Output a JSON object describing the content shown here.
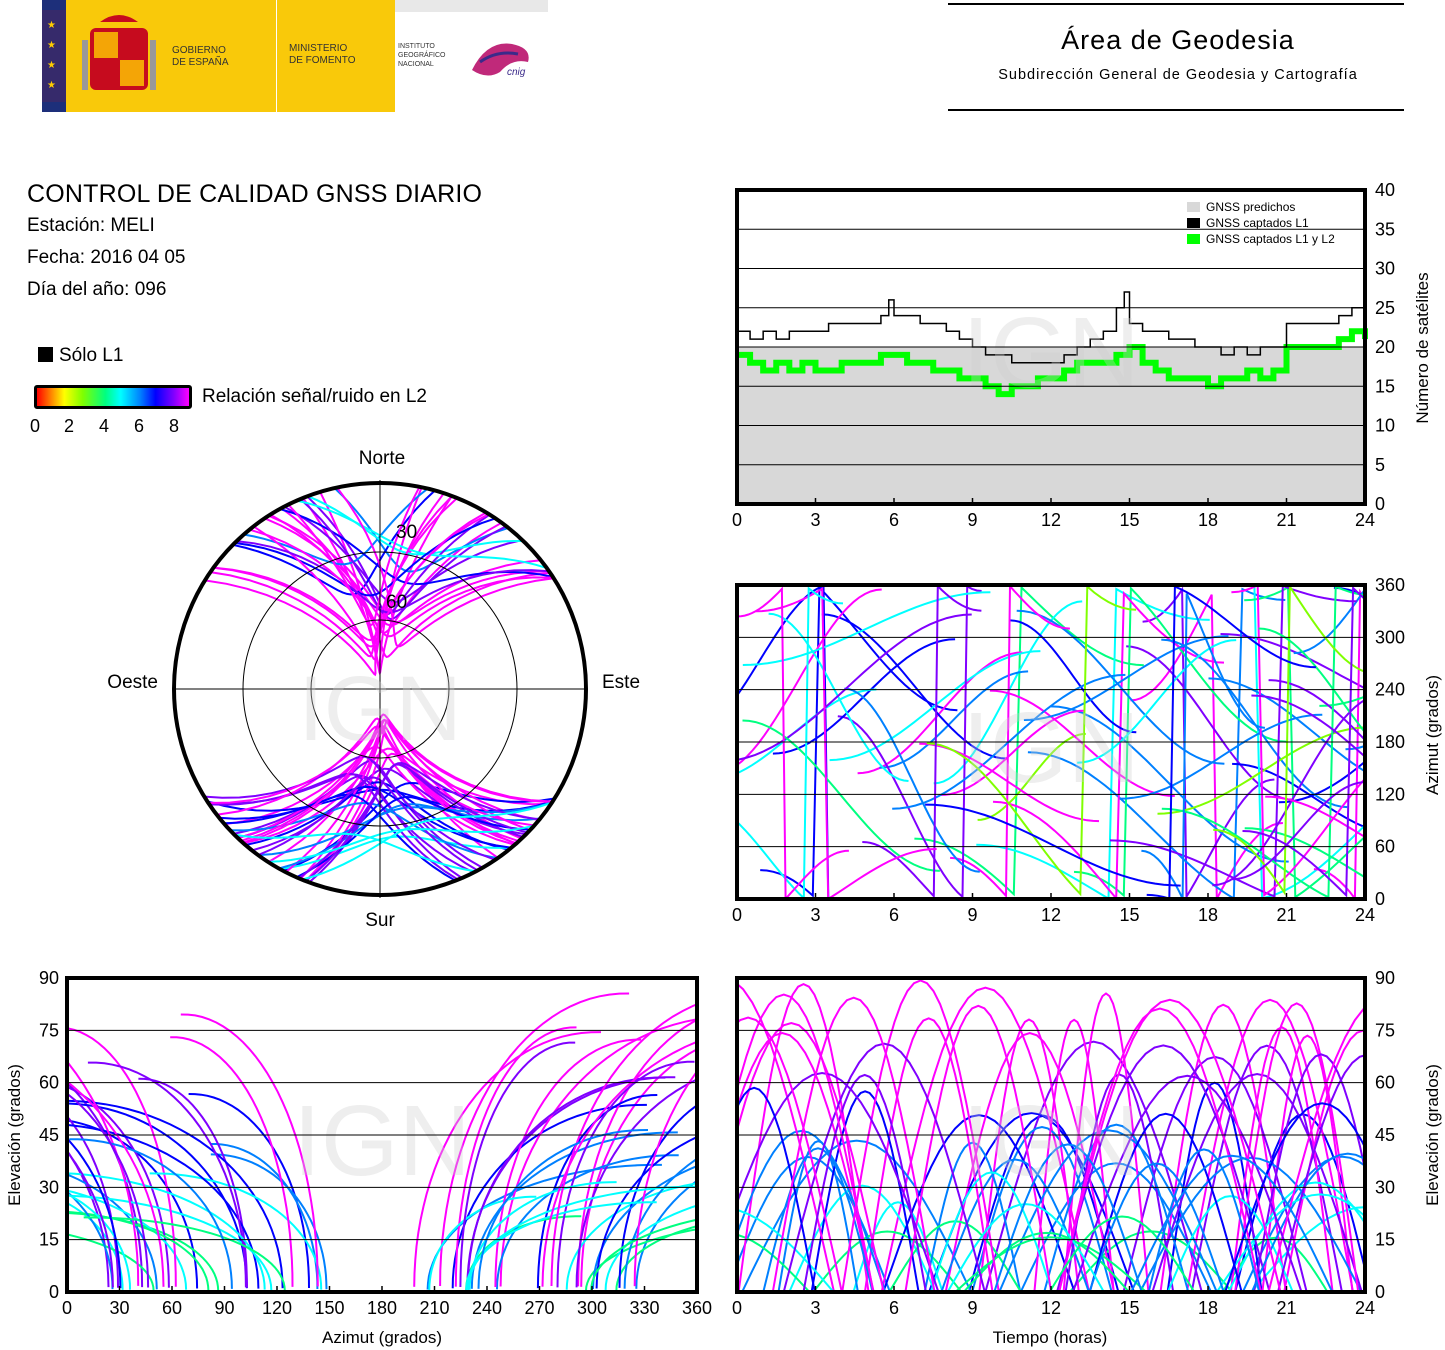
{
  "header": {
    "gov_left": "GOBIERNO",
    "gov_left2": "DE ESPAÑA",
    "ministry": "MINISTERIO",
    "ministry2": "DE FOMENTO",
    "institute1": "INSTITUTO",
    "institute2": "GEOGRÁFICO",
    "institute3": "NACIONAL",
    "cnig": "cnig",
    "area_title": "Área de Geodesia",
    "area_subtitle": "Subdirección General de Geodesia y Cartografía"
  },
  "info": {
    "title": "CONTROL DE CALIDAD GNSS DIARIO",
    "station": "Estación: MELI",
    "date": "Fecha: 2016 04 05",
    "doy": "Día del año: 096"
  },
  "legend": {
    "only_l1": "Sólo L1",
    "snr_label": "Relación señal/ruido en L2",
    "snr_ticks": [
      "0",
      "2",
      "4",
      "6",
      "8"
    ]
  },
  "watermark": "IGN",
  "colors": {
    "predicted": "#d8d8d8",
    "l1": "#000000",
    "l1l2": "#00ff00",
    "snr_scale": [
      "#ff0000",
      "#ff8000",
      "#ffff00",
      "#80ff00",
      "#00ff80",
      "#00ffff",
      "#0080ff",
      "#0000ff",
      "#8000ff",
      "#ff00ff"
    ]
  },
  "chart_data": [
    {
      "id": "satellite-count",
      "type": "line",
      "xlabel": "",
      "ylabel": "Número de satélites",
      "xlim": [
        0,
        24
      ],
      "ylim": [
        0,
        40
      ],
      "xticks": [
        "0",
        "3",
        "6",
        "9",
        "12",
        "15",
        "18",
        "21",
        "24"
      ],
      "yticks": [
        "0",
        "5",
        "10",
        "15",
        "20",
        "25",
        "30",
        "35",
        "40"
      ],
      "grid": "horizontal",
      "legend_position": "top-right",
      "series": [
        {
          "name": "GNSS predichos",
          "type": "area",
          "x": [
            0,
            24
          ],
          "values": [
            20,
            20
          ]
        },
        {
          "name": "GNSS captados L1",
          "x": [
            0,
            0.5,
            1,
            1.5,
            2,
            2.5,
            3,
            3.5,
            4,
            4.5,
            5,
            5.5,
            5.8,
            6,
            6.5,
            7,
            7.5,
            8,
            8.5,
            9,
            9.5,
            10,
            10.5,
            11,
            11.5,
            12,
            12.5,
            13,
            13.5,
            14,
            14.5,
            14.8,
            15,
            15.5,
            16,
            16.5,
            17,
            17.5,
            18,
            18.5,
            19,
            19.5,
            20,
            20.5,
            21,
            21.5,
            22,
            22.5,
            23,
            23.5,
            24
          ],
          "values": [
            22,
            21,
            22,
            21,
            22,
            22,
            22,
            23,
            23,
            23,
            23,
            24,
            26,
            24,
            24,
            23,
            23,
            22,
            21,
            20,
            19,
            19,
            18,
            18,
            18,
            18,
            19,
            20,
            21,
            22,
            25,
            27,
            23,
            22,
            22,
            21,
            21,
            20,
            20,
            19,
            20,
            19,
            20,
            20,
            23,
            23,
            23,
            23,
            24,
            25,
            24
          ]
        },
        {
          "name": "GNSS captados L1 y L2",
          "x": [
            0,
            0.5,
            1,
            1.5,
            2,
            2.5,
            3,
            3.5,
            4,
            4.5,
            5,
            5.5,
            6,
            6.5,
            7,
            7.5,
            8,
            8.5,
            9,
            9.5,
            10,
            10.5,
            11,
            11.5,
            12,
            12.5,
            13,
            13.5,
            14,
            14.5,
            15,
            15.5,
            16,
            16.5,
            17,
            17.5,
            18,
            18.5,
            19,
            19.5,
            20,
            20.5,
            21,
            21.5,
            22,
            22.5,
            23,
            23.5,
            24
          ],
          "values": [
            19,
            18,
            17,
            18,
            17,
            18,
            17,
            17,
            18,
            18,
            18,
            19,
            19,
            18,
            18,
            17,
            17,
            16,
            16,
            15,
            14,
            15,
            15,
            16,
            16,
            17,
            18,
            18,
            18,
            19,
            20,
            18,
            17,
            16,
            16,
            16,
            15,
            16,
            16,
            17,
            16,
            17,
            20,
            20,
            20,
            20,
            21,
            22,
            21
          ]
        }
      ]
    },
    {
      "id": "azimuth-vs-time",
      "type": "scatter",
      "xlabel": "",
      "ylabel": "Azimut (grados)",
      "xlim": [
        0,
        24
      ],
      "ylim": [
        0,
        360
      ],
      "xticks": [
        "0",
        "3",
        "6",
        "9",
        "12",
        "15",
        "18",
        "21",
        "24"
      ],
      "yticks": [
        "0",
        "60",
        "120",
        "180",
        "240",
        "300",
        "360"
      ],
      "grid": "horizontal"
    },
    {
      "id": "elevation-vs-azimuth",
      "type": "scatter",
      "xlabel": "Azimut (grados)",
      "ylabel": "Elevación (grados)",
      "xlim": [
        0,
        360
      ],
      "ylim": [
        0,
        90
      ],
      "xticks": [
        "0",
        "30",
        "60",
        "90",
        "120",
        "150",
        "180",
        "210",
        "240",
        "270",
        "300",
        "330",
        "360"
      ],
      "yticks": [
        "0",
        "15",
        "30",
        "45",
        "60",
        "75",
        "90"
      ],
      "grid": "horizontal"
    },
    {
      "id": "elevation-vs-time",
      "type": "scatter",
      "xlabel": "Tiempo (horas)",
      "ylabel": "Elevación (grados)",
      "xlim": [
        0,
        24
      ],
      "ylim": [
        0,
        90
      ],
      "xticks": [
        "0",
        "3",
        "6",
        "9",
        "12",
        "15",
        "18",
        "21",
        "24"
      ],
      "yticks": [
        "0",
        "15",
        "30",
        "45",
        "60",
        "75",
        "90"
      ],
      "grid": "horizontal"
    },
    {
      "id": "skyplot",
      "type": "scatter",
      "labels": {
        "north": "Norte",
        "south": "Sur",
        "east": "Este",
        "west": "Oeste"
      },
      "rings": [
        "30",
        "60"
      ]
    }
  ]
}
